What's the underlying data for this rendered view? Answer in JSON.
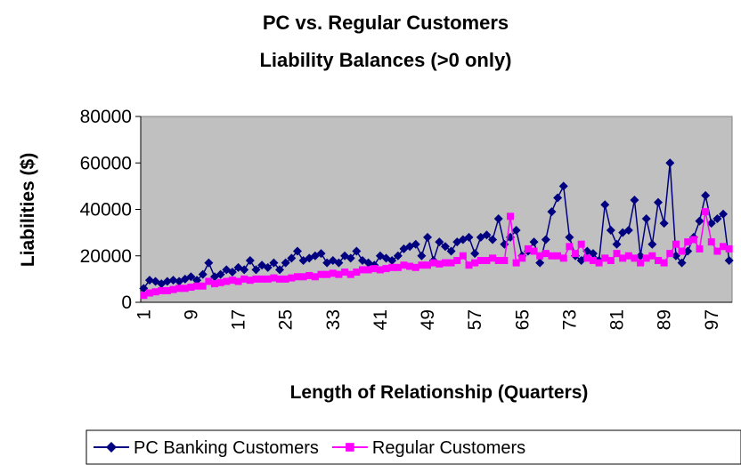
{
  "chart_data": {
    "type": "line",
    "title": "PC vs. Regular Customers",
    "subtitle": "Liability Balances (>0 only)",
    "x_label": "Length of Relationship (Quarters)",
    "y_label": "Liabilities ($)",
    "categories": [
      1,
      null,
      null,
      null,
      null,
      null,
      null,
      null,
      9,
      null,
      null,
      null,
      null,
      null,
      null,
      null,
      17,
      null,
      null,
      null,
      null,
      null,
      null,
      null,
      25,
      null,
      null,
      null,
      null,
      null,
      null,
      null,
      33,
      null,
      null,
      null,
      null,
      null,
      null,
      null,
      41,
      null,
      null,
      null,
      null,
      null,
      null,
      null,
      49,
      null,
      null,
      null,
      null,
      null,
      null,
      null,
      57,
      null,
      null,
      null,
      null,
      null,
      null,
      null,
      65,
      null,
      null,
      null,
      null,
      null,
      null,
      null,
      73,
      null,
      null,
      null,
      null,
      null,
      null,
      null,
      81,
      null,
      null,
      null,
      null,
      null,
      null,
      null,
      89,
      null,
      null,
      null,
      null,
      null,
      null,
      null,
      97,
      null,
      null,
      null
    ],
    "series": [
      {
        "name": "PC Banking Customers",
        "color": "#000080",
        "marker": "diamond",
        "values": [
          6000,
          9500,
          9000,
          8000,
          9000,
          9500,
          9000,
          10000,
          11000,
          9500,
          12000,
          17000,
          11000,
          12000,
          14000,
          13000,
          15000,
          14000,
          18000,
          14000,
          16000,
          15000,
          17000,
          14000,
          17000,
          19000,
          22000,
          18000,
          19000,
          20000,
          21000,
          17000,
          18000,
          17000,
          20000,
          19000,
          22000,
          18000,
          17000,
          16000,
          20000,
          19000,
          18000,
          20000,
          23000,
          24000,
          25000,
          20000,
          28000,
          18000,
          26000,
          24000,
          22000,
          26000,
          27000,
          28000,
          21000,
          28000,
          29000,
          27000,
          36000,
          25000,
          28000,
          31000,
          20000,
          22000,
          26000,
          17000,
          27000,
          39000,
          45000,
          50000,
          28000,
          20000,
          18000,
          22000,
          21000,
          18000,
          42000,
          31000,
          25000,
          30000,
          31000,
          44000,
          20000,
          36000,
          25000,
          43000,
          34000,
          60000,
          20000,
          17000,
          22000,
          28000,
          35000,
          46000,
          34000,
          36000,
          38000,
          18000
        ]
      },
      {
        "name": "Regular Customers",
        "color": "#ff00ff",
        "marker": "square",
        "values": [
          3000,
          4000,
          4500,
          5000,
          5000,
          5500,
          6000,
          6000,
          6500,
          7000,
          7000,
          9000,
          8000,
          8500,
          9000,
          9500,
          9000,
          10000,
          9500,
          10000,
          10000,
          10000,
          10500,
          10000,
          10000,
          10500,
          11000,
          11000,
          11500,
          11000,
          12000,
          12000,
          12500,
          12000,
          13000,
          12000,
          13000,
          14000,
          14000,
          14500,
          14000,
          14500,
          15000,
          15000,
          16000,
          15500,
          15000,
          16000,
          16000,
          17000,
          16500,
          17000,
          17000,
          18000,
          20000,
          16000,
          17000,
          18000,
          18000,
          19000,
          18000,
          18000,
          37000,
          17000,
          19000,
          23000,
          22000,
          20000,
          21000,
          20000,
          20000,
          19000,
          24000,
          21000,
          25000,
          19000,
          18000,
          17000,
          19000,
          18000,
          21000,
          19000,
          20000,
          19000,
          17000,
          19000,
          20000,
          18000,
          17000,
          21000,
          25000,
          22000,
          26000,
          27000,
          23000,
          39000,
          26000,
          22000,
          24000,
          23000
        ]
      }
    ],
    "ylim": [
      0,
      80000
    ],
    "yticks": [
      0,
      20000,
      40000,
      60000,
      80000
    ],
    "grid": false,
    "legend": "bottom"
  }
}
